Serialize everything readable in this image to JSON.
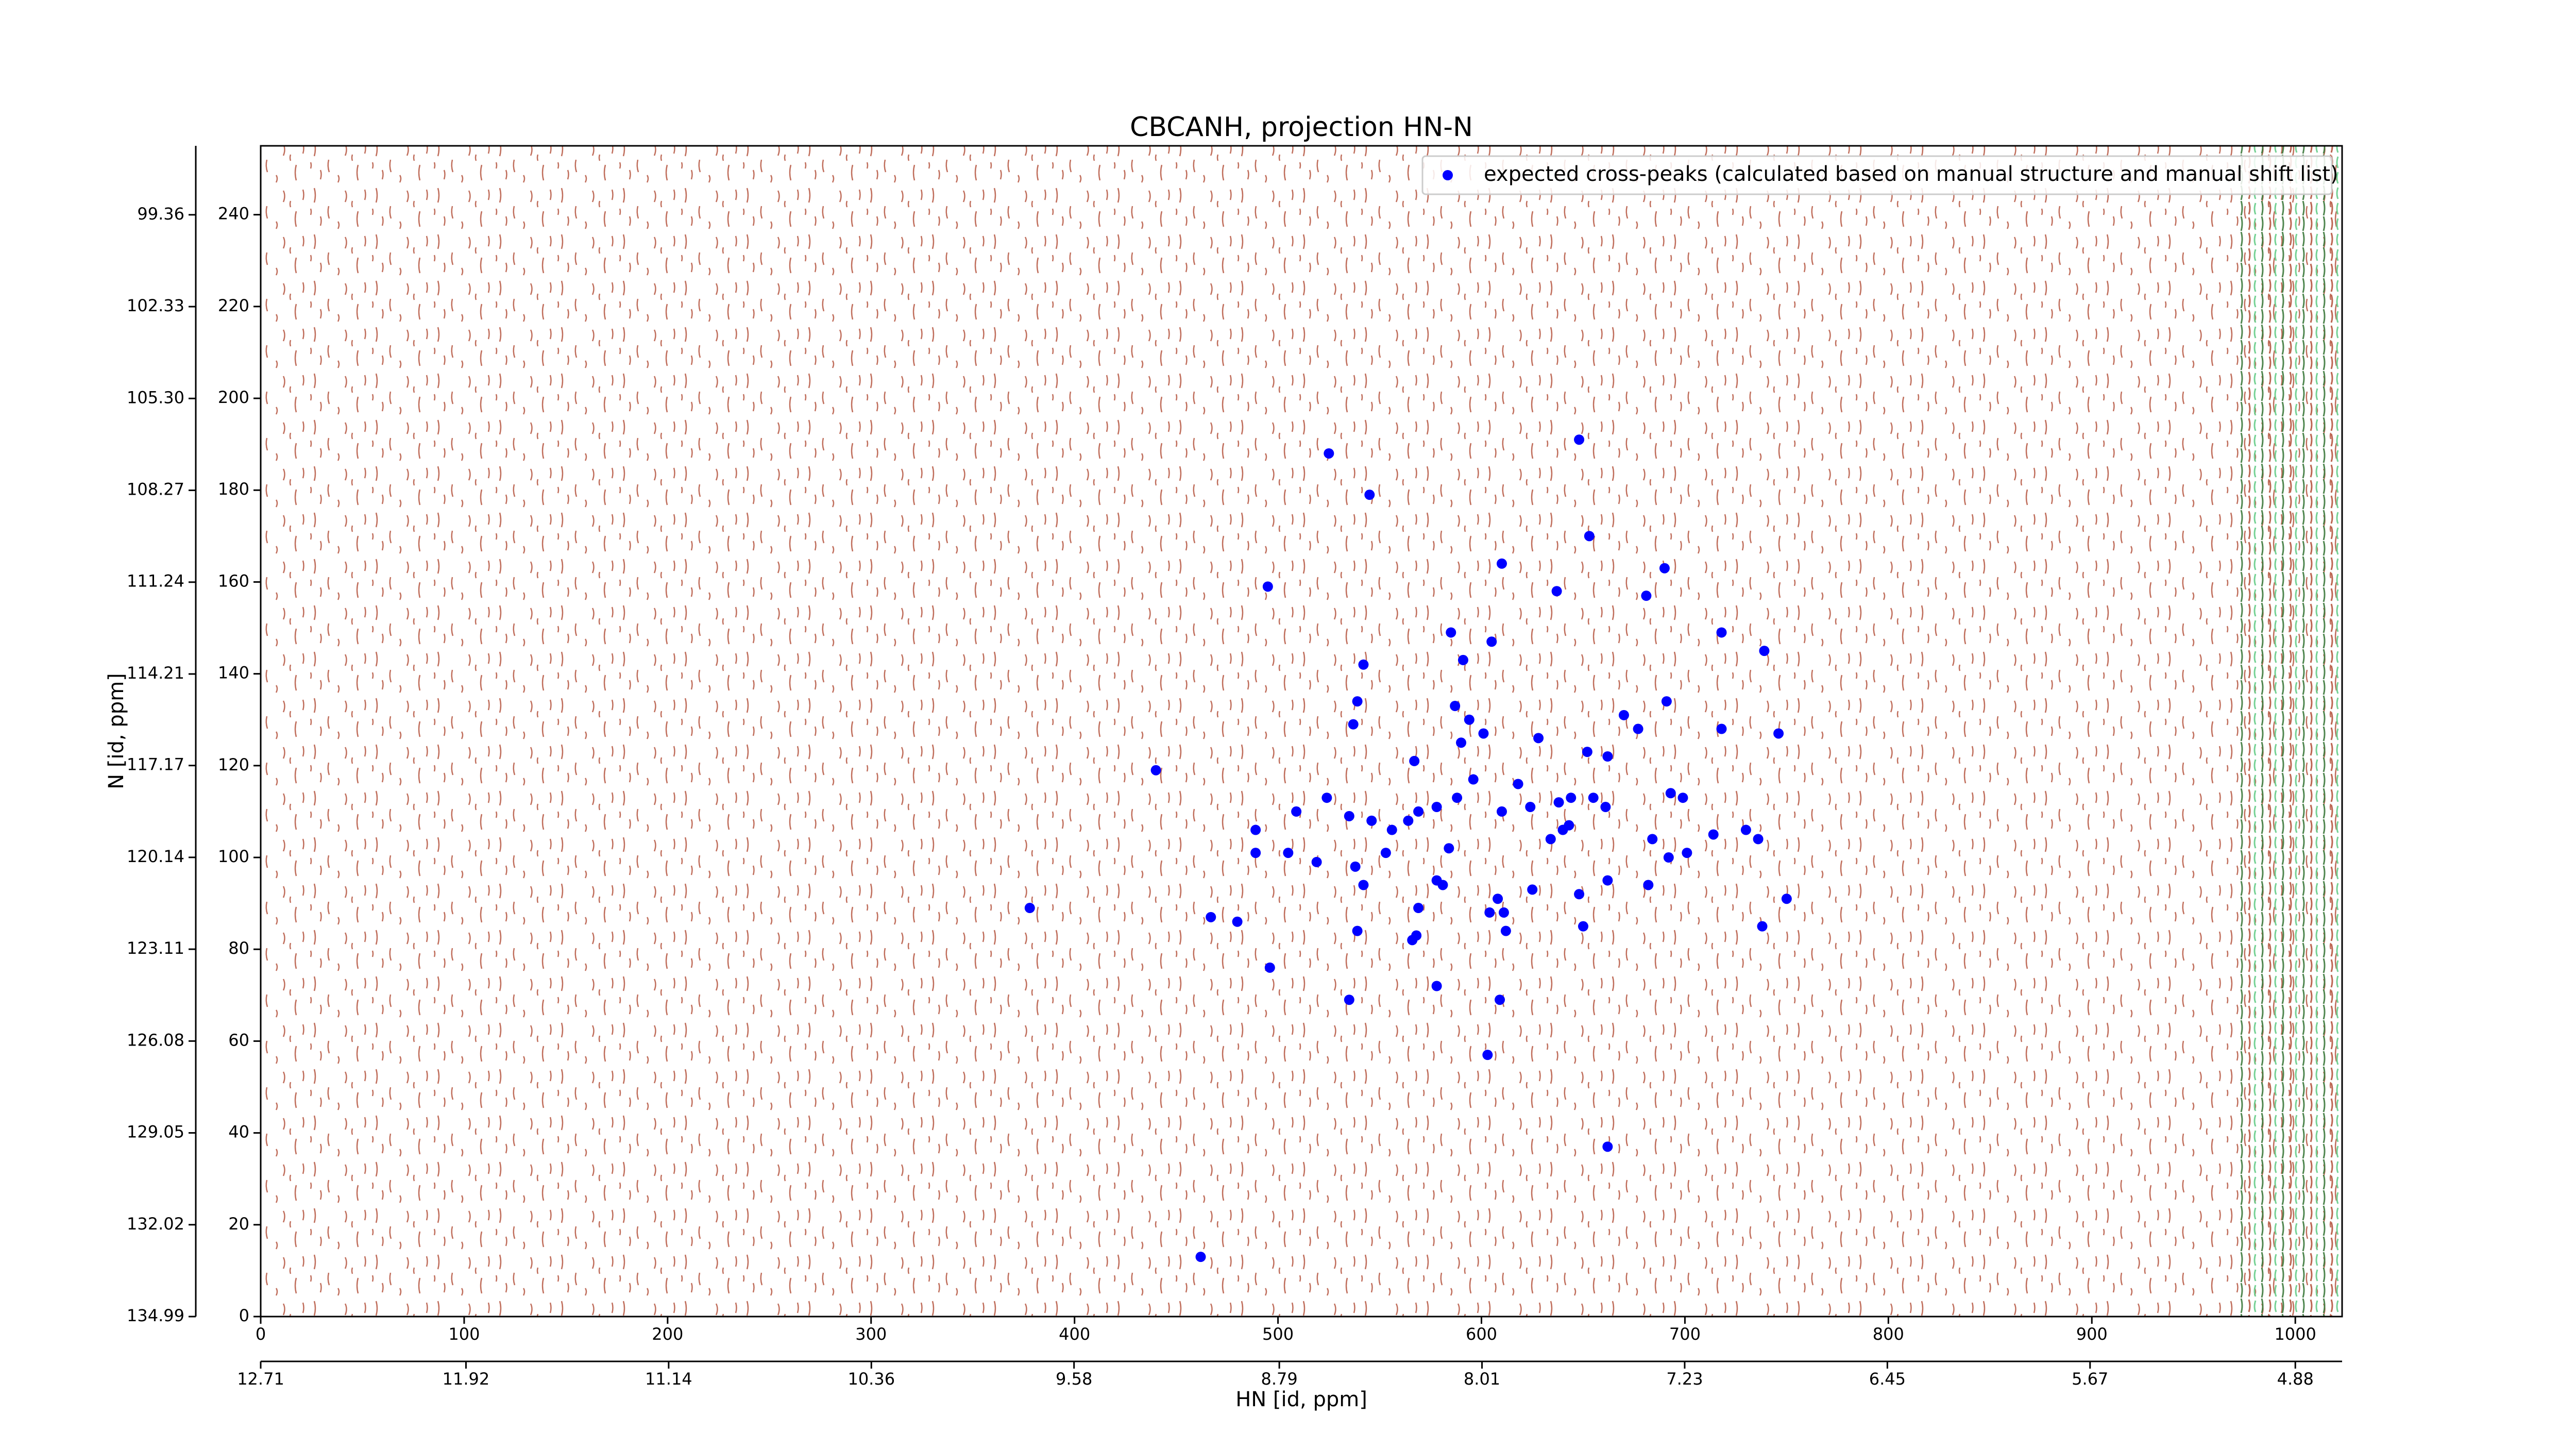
{
  "chart_data": {
    "type": "scatter",
    "title": "CBCANH, projection HN-N",
    "xlabel": "HN [id, ppm]",
    "ylabel": "N [id, ppm]",
    "xlim": [
      0,
      1023
    ],
    "ylim": [
      0,
      255
    ],
    "xticks": [
      0,
      100,
      200,
      300,
      400,
      500,
      600,
      700,
      800,
      900,
      1000
    ],
    "yticks": [
      0,
      20,
      40,
      60,
      80,
      100,
      120,
      140,
      160,
      180,
      200,
      220,
      240
    ],
    "x2lim": [
      12.71,
      4.7
    ],
    "x2ticks": [
      12.71,
      11.92,
      11.14,
      10.36,
      9.58,
      8.79,
      8.01,
      7.23,
      6.45,
      5.67,
      4.88
    ],
    "y2lim": [
      134.99,
      97.13
    ],
    "y2ticks": [
      134.99,
      132.02,
      129.05,
      126.08,
      123.11,
      120.14,
      117.17,
      114.21,
      111.24,
      108.27,
      {
        "value": 105.3,
        "label": "105.30"
      },
      102.33,
      99.36
    ],
    "legend": "upper right",
    "series": [
      {
        "name": "expected cross-peaks (calculated based on manual structure and manual shift list)",
        "color": "#0000ff",
        "x": [
          525,
          648,
          545,
          653,
          495,
          610,
          637,
          690,
          681,
          585,
          605,
          591,
          542,
          718,
          739,
          539,
          537,
          587,
          594,
          590,
          601,
          628,
          567,
          440,
          596,
          652,
          662,
          670,
          677,
          691,
          718,
          746,
          618,
          624,
          638,
          655,
          661,
          644,
          578,
          588,
          610,
          524,
          509,
          535,
          546,
          556,
          564,
          569,
          489,
          489,
          505,
          519,
          538,
          553,
          584,
          634,
          640,
          643,
          693,
          699,
          684,
          692,
          701,
          714,
          730,
          736,
          662,
          682,
          542,
          569,
          578,
          581,
          608,
          625,
          648,
          611,
          612,
          604,
          650,
          539,
          568,
          566,
          378,
          467,
          480,
          750,
          738,
          496,
          578,
          535,
          609,
          603,
          662,
          462
        ],
        "values": [
          188,
          191,
          179,
          170,
          159,
          164,
          158,
          163,
          157,
          149,
          147,
          143,
          142,
          149,
          145,
          134,
          129,
          133,
          130,
          125,
          127,
          126,
          121,
          119,
          117,
          123,
          122,
          131,
          128,
          134,
          128,
          127,
          116,
          111,
          112,
          113,
          111,
          113,
          111,
          113,
          110,
          113,
          110,
          109,
          108,
          106,
          108,
          110,
          106,
          101,
          101,
          99,
          98,
          101,
          102,
          104,
          106,
          107,
          114,
          113,
          104,
          100,
          101,
          105,
          106,
          104,
          95,
          94,
          94,
          89,
          95,
          94,
          91,
          93,
          92,
          88,
          84,
          88,
          85,
          84,
          83,
          82,
          89,
          87,
          86,
          91,
          85,
          76,
          72,
          69,
          69,
          57,
          37,
          13
        ]
      }
    ]
  }
}
